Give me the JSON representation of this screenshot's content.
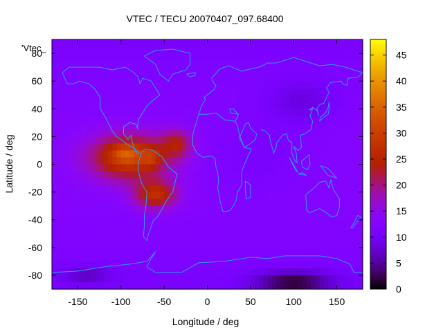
{
  "chart_data": {
    "type": "heatmap",
    "title": "VTEC / TECU 20070407_097.68400",
    "xlabel": "Longitude / deg",
    "ylabel": "Latitude / deg",
    "series_label": "'Vtec_",
    "xlim": [
      -180,
      180
    ],
    "ylim": [
      -90,
      90
    ],
    "x_ticks": [
      -150,
      -100,
      -50,
      0,
      50,
      100,
      150
    ],
    "y_ticks": [
      -80,
      -60,
      -40,
      -20,
      0,
      20,
      40,
      60,
      80
    ],
    "colorbar": {
      "range": [
        0,
        48
      ],
      "ticks": [
        0,
        5,
        10,
        15,
        20,
        25,
        30,
        35,
        40,
        45
      ],
      "palette": "gnuplot-rgbformulae-7-5-15"
    },
    "field": {
      "background_tecu": 11,
      "grid_deg": 5,
      "blobs": [
        {
          "lon": -90,
          "lat": 5,
          "slon": 45,
          "slat": 16,
          "amp": 17
        },
        {
          "lon": -60,
          "lat": -22,
          "slon": 24,
          "slat": 10,
          "amp": 14
        },
        {
          "lon": -35,
          "lat": 15,
          "slon": 18,
          "slat": 10,
          "amp": 9
        },
        {
          "lon": -95,
          "lat": 8,
          "slon": 14,
          "slat": 6,
          "amp": 6
        },
        {
          "lon": -65,
          "lat": 5,
          "slon": 10,
          "slat": 6,
          "amp": 5
        },
        {
          "lon": 60,
          "lat": 5,
          "slon": 60,
          "slat": 30,
          "amp": -2
        },
        {
          "lon": 110,
          "lat": 45,
          "slon": 40,
          "slat": 15,
          "amp": -4
        },
        {
          "lon": 100,
          "lat": -85,
          "slon": 45,
          "slat": 8,
          "amp": -10
        },
        {
          "lon": -140,
          "lat": -80,
          "slon": 30,
          "slat": 6,
          "amp": -5
        }
      ]
    }
  }
}
